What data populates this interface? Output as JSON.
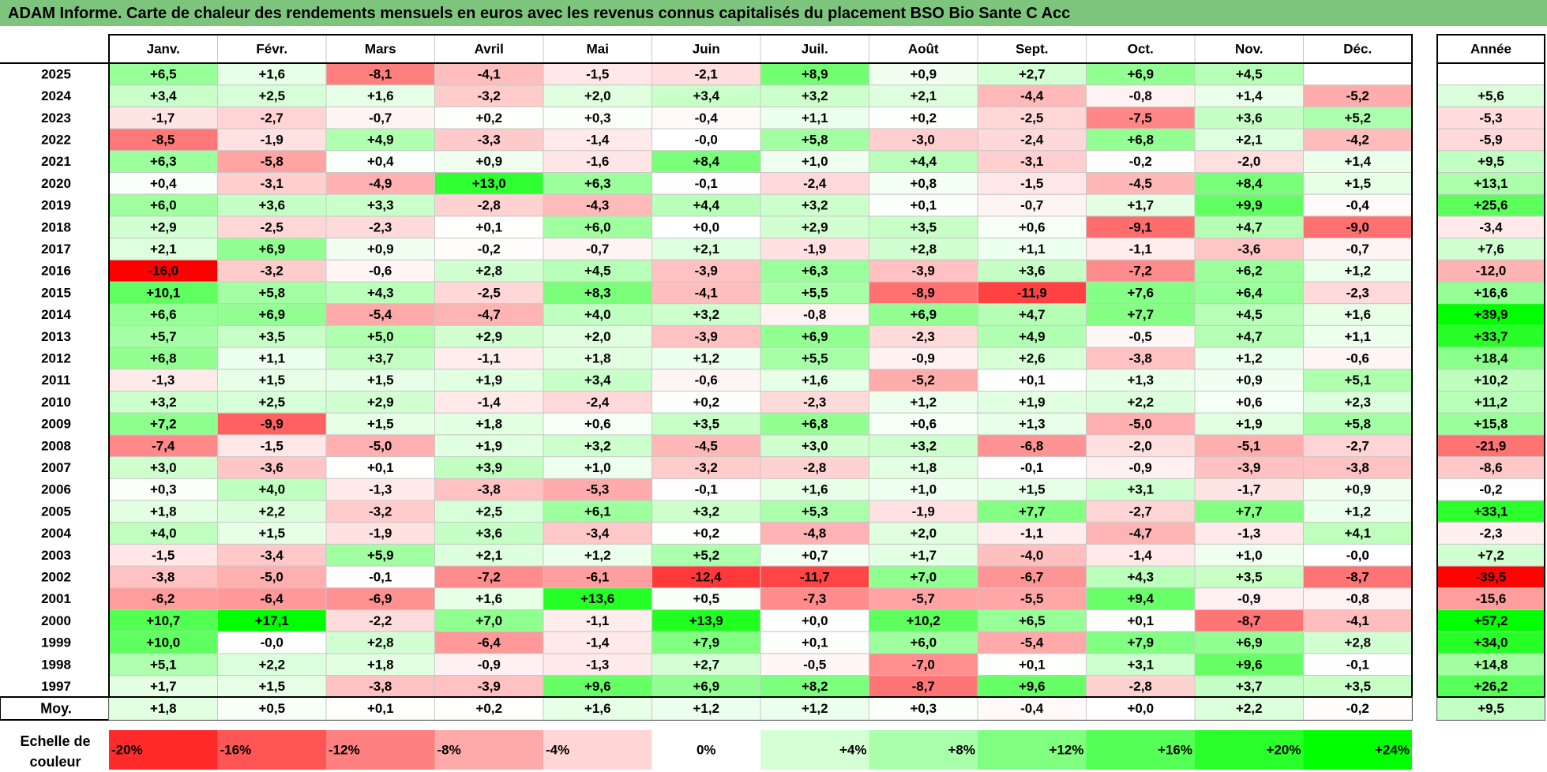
{
  "title": "ADAM Informe. Carte de chaleur des rendements mensuels en euros avec les revenus connus capitalisés du placement BSO Bio Sante C Acc",
  "chart_data": {
    "type": "heatmap",
    "months": [
      "Janv.",
      "Févr.",
      "Mars",
      "Avril",
      "Mai",
      "Juin",
      "Juil.",
      "Août",
      "Sept.",
      "Oct.",
      "Nov.",
      "Déc."
    ],
    "year_header": "Année",
    "rows": [
      {
        "year": "2025",
        "values": [
          "+6,5",
          "+1,6",
          "-8,1",
          "-4,1",
          "-1,5",
          "-2,1",
          "+8,9",
          "+0,9",
          "+2,7",
          "+6,9",
          "+4,5",
          ""
        ],
        "annual": ""
      },
      {
        "year": "2024",
        "values": [
          "+3,4",
          "+2,5",
          "+1,6",
          "-3,2",
          "+2,0",
          "+3,4",
          "+3,2",
          "+2,1",
          "-4,4",
          "-0,8",
          "+1,4",
          "-5,2"
        ],
        "annual": "+5,6"
      },
      {
        "year": "2023",
        "values": [
          "-1,7",
          "-2,7",
          "-0,7",
          "+0,2",
          "+0,3",
          "-0,4",
          "+1,1",
          "+0,2",
          "-2,5",
          "-7,5",
          "+3,6",
          "+5,2"
        ],
        "annual": "-5,3"
      },
      {
        "year": "2022",
        "values": [
          "-8,5",
          "-1,9",
          "+4,9",
          "-3,3",
          "-1,4",
          "-0,0",
          "+5,8",
          "-3,0",
          "-2,4",
          "+6,8",
          "+2,1",
          "-4,2"
        ],
        "annual": "-5,9"
      },
      {
        "year": "2021",
        "values": [
          "+6,3",
          "-5,8",
          "+0,4",
          "+0,9",
          "-1,6",
          "+8,4",
          "+1,0",
          "+4,4",
          "-3,1",
          "-0,2",
          "-2,0",
          "+1,4"
        ],
        "annual": "+9,5"
      },
      {
        "year": "2020",
        "values": [
          "+0,4",
          "-3,1",
          "-4,9",
          "+13,0",
          "+6,3",
          "-0,1",
          "-2,4",
          "+0,8",
          "-1,5",
          "-4,5",
          "+8,4",
          "+1,5"
        ],
        "annual": "+13,1"
      },
      {
        "year": "2019",
        "values": [
          "+6,0",
          "+3,6",
          "+3,3",
          "-2,8",
          "-4,3",
          "+4,4",
          "+3,2",
          "+0,1",
          "-0,7",
          "+1,7",
          "+9,9",
          "-0,4"
        ],
        "annual": "+25,6"
      },
      {
        "year": "2018",
        "values": [
          "+2,9",
          "-2,5",
          "-2,3",
          "+0,1",
          "+6,0",
          "+0,0",
          "+2,9",
          "+3,5",
          "+0,6",
          "-9,1",
          "+4,7",
          "-9,0"
        ],
        "annual": "-3,4"
      },
      {
        "year": "2017",
        "values": [
          "+2,1",
          "+6,9",
          "+0,9",
          "-0,2",
          "-0,7",
          "+2,1",
          "-1,9",
          "+2,8",
          "+1,1",
          "-1,1",
          "-3,6",
          "-0,7"
        ],
        "annual": "+7,6"
      },
      {
        "year": "2016",
        "values": [
          "-16,0",
          "-3,2",
          "-0,6",
          "+2,8",
          "+4,5",
          "-3,9",
          "+6,3",
          "-3,9",
          "+3,6",
          "-7,2",
          "+6,2",
          "+1,2"
        ],
        "annual": "-12,0"
      },
      {
        "year": "2015",
        "values": [
          "+10,1",
          "+5,8",
          "+4,3",
          "-2,5",
          "+8,3",
          "-4,1",
          "+5,5",
          "-8,9",
          "-11,9",
          "+7,6",
          "+6,4",
          "-2,3"
        ],
        "annual": "+16,6"
      },
      {
        "year": "2014",
        "values": [
          "+6,6",
          "+6,9",
          "-5,4",
          "-4,7",
          "+4,0",
          "+3,2",
          "-0,8",
          "+6,9",
          "+4,7",
          "+7,7",
          "+4,5",
          "+1,6"
        ],
        "annual": "+39,9"
      },
      {
        "year": "2013",
        "values": [
          "+5,7",
          "+3,5",
          "+5,0",
          "+2,9",
          "+2,0",
          "-3,9",
          "+6,9",
          "-2,3",
          "+4,9",
          "-0,5",
          "+4,7",
          "+1,1"
        ],
        "annual": "+33,7"
      },
      {
        "year": "2012",
        "values": [
          "+6,8",
          "+1,1",
          "+3,7",
          "-1,1",
          "+1,8",
          "+1,2",
          "+5,5",
          "-0,9",
          "+2,6",
          "-3,8",
          "+1,2",
          "-0,6"
        ],
        "annual": "+18,4"
      },
      {
        "year": "2011",
        "values": [
          "-1,3",
          "+1,5",
          "+1,5",
          "+1,9",
          "+3,4",
          "-0,6",
          "+1,6",
          "-5,2",
          "+0,1",
          "+1,3",
          "+0,9",
          "+5,1"
        ],
        "annual": "+10,2"
      },
      {
        "year": "2010",
        "values": [
          "+3,2",
          "+2,5",
          "+2,9",
          "-1,4",
          "-2,4",
          "+0,2",
          "-2,3",
          "+1,2",
          "+1,9",
          "+2,2",
          "+0,6",
          "+2,3"
        ],
        "annual": "+11,2"
      },
      {
        "year": "2009",
        "values": [
          "+7,2",
          "-9,9",
          "+1,5",
          "+1,8",
          "+0,6",
          "+3,5",
          "+6,8",
          "+0,6",
          "+1,3",
          "-5,0",
          "+1,9",
          "+5,8"
        ],
        "annual": "+15,8"
      },
      {
        "year": "2008",
        "values": [
          "-7,4",
          "-1,5",
          "-5,0",
          "+1,9",
          "+3,2",
          "-4,5",
          "+3,0",
          "+3,2",
          "-6,8",
          "-2,0",
          "-5,1",
          "-2,7"
        ],
        "annual": "-21,9"
      },
      {
        "year": "2007",
        "values": [
          "+3,0",
          "-3,6",
          "+0,1",
          "+3,9",
          "+1,0",
          "-3,2",
          "-2,8",
          "+1,8",
          "-0,1",
          "-0,9",
          "-3,9",
          "-3,8"
        ],
        "annual": "-8,6"
      },
      {
        "year": "2006",
        "values": [
          "+0,3",
          "+4,0",
          "-1,3",
          "-3,8",
          "-5,3",
          "-0,1",
          "+1,6",
          "+1,0",
          "+1,5",
          "+3,1",
          "-1,7",
          "+0,9"
        ],
        "annual": "-0,2"
      },
      {
        "year": "2005",
        "values": [
          "+1,8",
          "+2,2",
          "-3,2",
          "+2,5",
          "+6,1",
          "+3,2",
          "+5,3",
          "-1,9",
          "+7,7",
          "-2,7",
          "+7,7",
          "+1,2"
        ],
        "annual": "+33,1"
      },
      {
        "year": "2004",
        "values": [
          "+4,0",
          "+1,5",
          "-1,9",
          "+3,6",
          "-3,4",
          "+0,2",
          "-4,8",
          "+2,0",
          "-1,1",
          "-4,7",
          "-1,3",
          "+4,1"
        ],
        "annual": "-2,3"
      },
      {
        "year": "2003",
        "values": [
          "-1,5",
          "-3,4",
          "+5,9",
          "+2,1",
          "+1,2",
          "+5,2",
          "+0,7",
          "+1,7",
          "-4,0",
          "-1,4",
          "+1,0",
          "-0,0"
        ],
        "annual": "+7,2"
      },
      {
        "year": "2002",
        "values": [
          "-3,8",
          "-5,0",
          "-0,1",
          "-7,2",
          "-6,1",
          "-12,4",
          "-11,7",
          "+7,0",
          "-6,7",
          "+4,3",
          "+3,5",
          "-8,7"
        ],
        "annual": "-39,5"
      },
      {
        "year": "2001",
        "values": [
          "-6,2",
          "-6,4",
          "-6,9",
          "+1,6",
          "+13,6",
          "+0,5",
          "-7,3",
          "-5,7",
          "-5,5",
          "+9,4",
          "-0,9",
          "-0,8"
        ],
        "annual": "-15,6"
      },
      {
        "year": "2000",
        "values": [
          "+10,7",
          "+17,1",
          "-2,2",
          "+7,0",
          "-1,1",
          "+13,9",
          "+0,0",
          "+10,2",
          "+6,5",
          "+0,1",
          "-8,7",
          "-4,1"
        ],
        "annual": "+57,2"
      },
      {
        "year": "1999",
        "values": [
          "+10,0",
          "-0,0",
          "+2,8",
          "-6,4",
          "-1,4",
          "+7,9",
          "+0,1",
          "+6,0",
          "-5,4",
          "+7,9",
          "+6,9",
          "+2,8"
        ],
        "annual": "+34,0"
      },
      {
        "year": "1998",
        "values": [
          "+5,1",
          "+2,2",
          "+1,8",
          "-0,9",
          "-1,3",
          "+2,7",
          "-0,5",
          "-7,0",
          "+0,1",
          "+3,1",
          "+9,6",
          "-0,1"
        ],
        "annual": "+14,8"
      },
      {
        "year": "1997",
        "values": [
          "+1,7",
          "+1,5",
          "-3,8",
          "-3,9",
          "+9,6",
          "+6,9",
          "+8,2",
          "-8,7",
          "+9,6",
          "-2,8",
          "+3,7",
          "+3,5"
        ],
        "annual": "+26,2"
      }
    ],
    "average": {
      "label": "Moy.",
      "values": [
        "+1,8",
        "+0,5",
        "+0,1",
        "+0,2",
        "+1,6",
        "+1,2",
        "+1,2",
        "+0,3",
        "-0,4",
        "+0,0",
        "+2,2",
        "-0,2"
      ],
      "annual": "+9,5"
    },
    "scale": {
      "label_line1": "Echelle de",
      "label_line2": "couleur",
      "steps": [
        {
          "label": "-20%",
          "value": -20
        },
        {
          "label": "-16%",
          "value": -16
        },
        {
          "label": "-12%",
          "value": -12
        },
        {
          "label": "-8%",
          "value": -8
        },
        {
          "label": "-4%",
          "value": -4
        },
        {
          "label": "0%",
          "value": 0
        },
        {
          "label": "+4%",
          "value": 4
        },
        {
          "label": "+8%",
          "value": 8
        },
        {
          "label": "+12%",
          "value": 12
        },
        {
          "label": "+16%",
          "value": 16
        },
        {
          "label": "+20%",
          "value": 20
        },
        {
          "label": "+24%",
          "value": 24
        }
      ]
    }
  }
}
